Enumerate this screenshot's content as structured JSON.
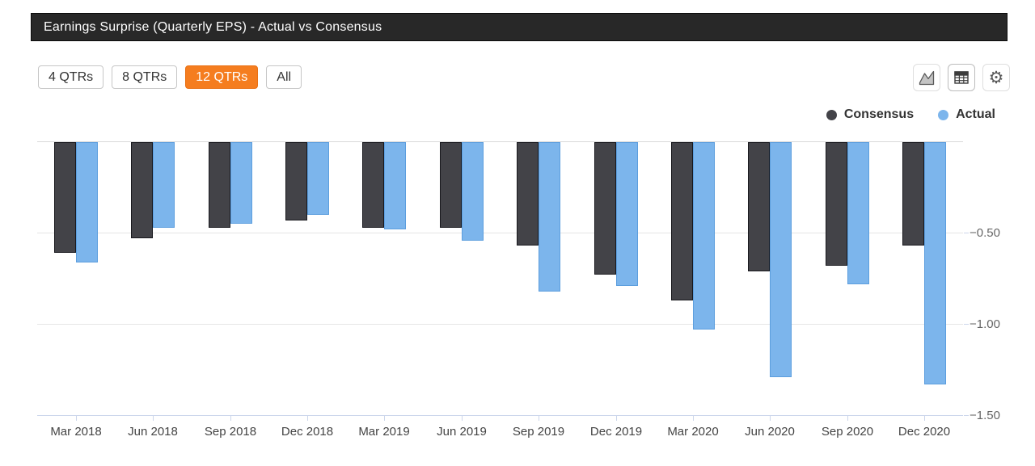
{
  "title_bar": {
    "title": "Earnings Surprise (Quarterly EPS) - Actual vs Consensus"
  },
  "toolbar": {
    "range_buttons": [
      {
        "label": "4 QTRs",
        "active": false
      },
      {
        "label": "8 QTRs",
        "active": false
      },
      {
        "label": "12 QTRs",
        "active": true
      },
      {
        "label": "All",
        "active": false
      }
    ],
    "icon_buttons": [
      {
        "name": "area-chart-icon"
      },
      {
        "name": "table-icon"
      },
      {
        "name": "gear-icon",
        "glyph": "⚙"
      }
    ]
  },
  "legend": [
    {
      "label": "Consensus",
      "color": "#434348"
    },
    {
      "label": "Actual",
      "color": "#7cb5ec"
    }
  ],
  "colors": {
    "active_button": "#f57d1f",
    "title_bar_bg": "#282828",
    "axis_line": "#ccd6eb",
    "gridline": "#e6e6e6",
    "zero_line": "#d9d9d9"
  },
  "chart_data": {
    "type": "bar",
    "title": "Earnings Surprise (Quarterly EPS) - Actual vs Consensus",
    "categories": [
      "Mar 2018",
      "Jun 2018",
      "Sep 2018",
      "Dec 2018",
      "Mar 2019",
      "Jun 2019",
      "Sep 2019",
      "Dec 2019",
      "Mar 2020",
      "Jun 2020",
      "Sep 2020",
      "Dec 2020"
    ],
    "series": [
      {
        "name": "Consensus",
        "color": "#434348",
        "border_color": "#18181d",
        "values": [
          -0.61,
          -0.53,
          -0.47,
          -0.43,
          -0.47,
          -0.47,
          -0.57,
          -0.73,
          -0.87,
          -0.71,
          -0.68,
          -0.57
        ]
      },
      {
        "name": "Actual",
        "color": "#7cb5ec",
        "border_color": "#5c9ede",
        "values": [
          -0.66,
          -0.47,
          -0.45,
          -0.4,
          -0.48,
          -0.54,
          -0.82,
          -0.79,
          -1.03,
          -1.29,
          -0.78,
          -1.33
        ]
      }
    ],
    "ylim": [
      -1.5,
      0
    ],
    "yticks": [
      "−0.50",
      "−1.00",
      "−1.50"
    ],
    "ytick_values": [
      -0.5,
      -1.0,
      -1.5
    ],
    "xlabel": "",
    "ylabel": "",
    "grid": "horizontal",
    "legend_position": "top-right"
  }
}
